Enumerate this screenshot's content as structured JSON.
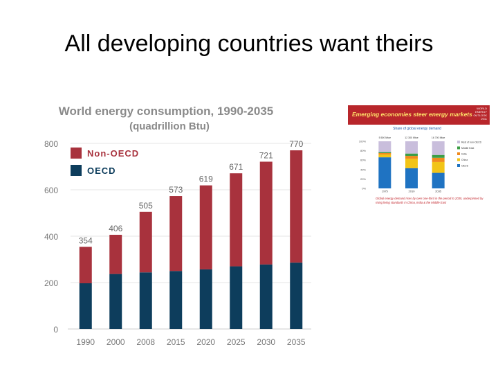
{
  "slide": {
    "title": "All developing countries want theirs"
  },
  "chart_data": [
    {
      "type": "bar",
      "stacked": true,
      "title": "World energy consumption, 1990-2035",
      "subtitle": "(quadrillion Btu)",
      "categories": [
        "1990",
        "2000",
        "2008",
        "2015",
        "2020",
        "2025",
        "2030",
        "2035"
      ],
      "series": [
        {
          "name": "OECD",
          "color": "#0d3d5c",
          "values": [
            197,
            237,
            244,
            250,
            257,
            270,
            278,
            286
          ]
        },
        {
          "name": "Non-OECD",
          "color": "#a8323d",
          "values": [
            157,
            169,
            261,
            323,
            362,
            401,
            443,
            484
          ]
        }
      ],
      "totals": [
        "354",
        "406",
        "505",
        "573",
        "619",
        "671",
        "721",
        "770"
      ],
      "yticks": [
        "0",
        "200",
        "400",
        "600",
        "800"
      ],
      "ylim": [
        0,
        800
      ],
      "grid": true,
      "legend": "top-left"
    },
    {
      "type": "bar",
      "stacked": true,
      "normalized": true,
      "title": "Emerging economies steer energy markets",
      "subtitle": "Share of global energy demand",
      "side_text": "WORLD ENERGY OUTLOOK 2011",
      "caption": "Global energy demand rises by over one-third in the period to 2035, underpinned by rising living standards in China, India & the Middle East",
      "categories": [
        "1975",
        "2010",
        "2035"
      ],
      "column_labels": [
        "5 500 Mtoe",
        "12 300 Mtoe",
        "16 700 Mtoe"
      ],
      "yticks": [
        "0%",
        "20%",
        "40%",
        "60%",
        "80%",
        "100%"
      ],
      "series": [
        {
          "name": "OECD",
          "color": "#1f73c2",
          "values": [
            66,
            43,
            33
          ]
        },
        {
          "name": "China",
          "color": "#f2c417",
          "values": [
            6,
            20,
            23
          ]
        },
        {
          "name": "India",
          "color": "#f08a1e",
          "values": [
            3,
            6,
            9
          ]
        },
        {
          "name": "Middle East",
          "color": "#3c9e46",
          "values": [
            2,
            5,
            6
          ]
        },
        {
          "name": "Rest of non-OECD",
          "color": "#c9bedc",
          "values": [
            23,
            26,
            29
          ]
        }
      ]
    }
  ]
}
